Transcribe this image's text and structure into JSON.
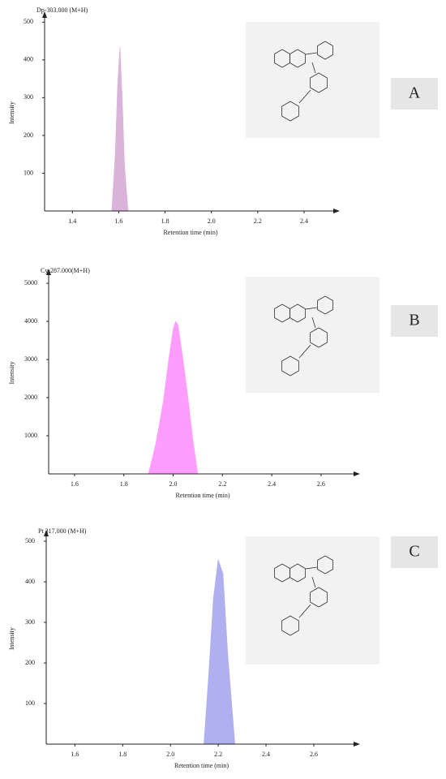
{
  "chart_data": [
    {
      "type": "area",
      "title": "Dp-303.000 (M+H)",
      "title_color": "#8b2c8b",
      "panel": "A",
      "xlabel": "Retention time (min)",
      "ylabel": "Intensity",
      "color": "#d9b3d9",
      "x": [
        1.57,
        1.585,
        1.595,
        1.605,
        1.615,
        1.625,
        1.64
      ],
      "values": [
        0,
        150,
        330,
        435,
        300,
        120,
        0
      ],
      "xlim": [
        1.28,
        2.54
      ],
      "ylim": [
        0,
        520
      ],
      "xticks": [
        1.4,
        1.6,
        1.8,
        {
          "value": 2,
          "label": "2.0"
        },
        2.2,
        2.4
      ],
      "yticks": [
        100,
        200,
        300,
        400,
        500
      ]
    },
    {
      "type": "area",
      "title": "Cy-287.000(M+H)",
      "title_color": "#ff33ff",
      "panel": "B",
      "xlabel": "Retention time (min)",
      "ylabel": "Intensity",
      "color": "#ff9cff",
      "x": [
        1.9,
        1.93,
        1.96,
        1.98,
        2.0,
        2.01,
        2.02,
        2.04,
        2.06,
        2.08,
        2.1
      ],
      "values": [
        0,
        800,
        1900,
        2900,
        3800,
        4000,
        3900,
        3000,
        2000,
        900,
        0
      ],
      "xlim": [
        1.495,
        2.745
      ],
      "ylim": [
        0,
        5300
      ],
      "xticks": [
        1.6,
        1.8,
        {
          "value": 2,
          "label": "2.0"
        },
        2.2,
        2.4,
        2.6
      ],
      "yticks": [
        1000,
        2000,
        3000,
        4000,
        5000
      ]
    },
    {
      "type": "area",
      "title": "Pt 317.000 (M+H)",
      "title_color": "#2222cc",
      "panel": "C",
      "xlabel": "Retention time (min)",
      "ylabel": "Intensity",
      "color": "#b0b0f0",
      "x": [
        2.14,
        2.16,
        2.18,
        2.2,
        2.22,
        2.24,
        2.27
      ],
      "values": [
        0,
        170,
        360,
        455,
        420,
        220,
        0
      ],
      "xlim": [
        1.48,
        2.78
      ],
      "ylim": [
        0,
        520
      ],
      "xticks": [
        1.6,
        1.8,
        {
          "value": 2,
          "label": "2.0"
        },
        2.2,
        2.4,
        2.6
      ],
      "yticks": [
        100,
        200,
        300,
        400,
        500
      ]
    }
  ]
}
